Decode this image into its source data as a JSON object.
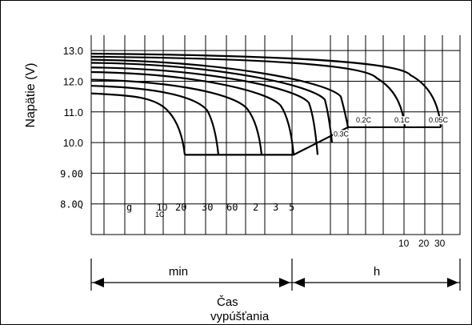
{
  "chart_data": {
    "type": "line",
    "ylabel": "Napätie (V)",
    "xlabel_line1": "Čas",
    "xlabel_line2": "vypúšťania",
    "y_ticks": [
      "13.0",
      "12.0",
      "11.0",
      "10.0",
      "9.00",
      "8.0Q"
    ],
    "y_tick_values": [
      13.0,
      12.0,
      11.0,
      10.0,
      9.0,
      8.0
    ],
    "ylim": [
      7.0,
      13.5
    ],
    "x_ticks_min": [
      "g",
      "10",
      "20",
      "30",
      "60",
      "2",
      "3",
      "5"
    ],
    "x_tick_sub": "1C",
    "x_ticks_h": [
      "10",
      "20",
      "30"
    ],
    "x_ranges": [
      {
        "label": "min"
      },
      {
        "label": "h"
      }
    ],
    "series": [
      {
        "name": "1C",
        "start_v": 11.6,
        "knee_v": 11.0,
        "end_v": 9.6
      },
      {
        "name": "",
        "start_v": 11.85,
        "knee_v": 11.05,
        "end_v": 9.6
      },
      {
        "name": "",
        "start_v": 12.05,
        "knee_v": 11.1,
        "end_v": 9.6
      },
      {
        "name": "",
        "start_v": 12.3,
        "knee_v": 11.2,
        "end_v": 9.6
      },
      {
        "name": "",
        "start_v": 12.45,
        "knee_v": 11.3,
        "end_v": 9.6
      },
      {
        "name": "0.3C",
        "start_v": 12.6,
        "knee_v": 11.4,
        "end_v": 10.0
      },
      {
        "name": "0.2C",
        "start_v": 12.7,
        "knee_v": 11.5,
        "end_v": 10.5
      },
      {
        "name": "0.1C",
        "start_v": 12.8,
        "knee_v": 12.1,
        "end_v": 10.5
      },
      {
        "name": "0.05C",
        "start_v": 12.9,
        "knee_v": 12.2,
        "end_v": 10.5
      }
    ],
    "series_labels": [
      "0.3C",
      "0.2C",
      "0.1C",
      "0.05C"
    ],
    "grid": true
  }
}
